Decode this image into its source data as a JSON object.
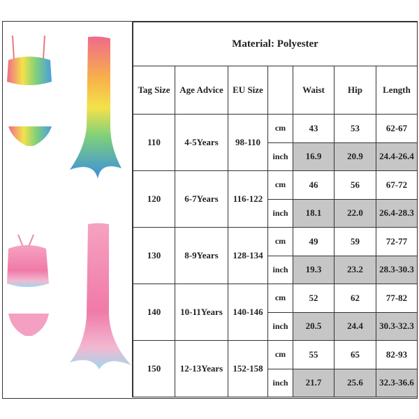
{
  "title": "Material: Polyester",
  "headers": {
    "tag": "Tag Size",
    "age": "Age Advice",
    "eu": "EU Size",
    "unit": "",
    "waist": "Waist",
    "hip": "Hip",
    "length": "Length"
  },
  "units": {
    "cm": "cm",
    "inch": "inch"
  },
  "rows": [
    {
      "tag": "110",
      "age": "4-5Years",
      "eu": "98-110",
      "cm": [
        "43",
        "53",
        "62-67"
      ],
      "inch": [
        "16.9",
        "20.9",
        "24.4-26.4"
      ]
    },
    {
      "tag": "120",
      "age": "6-7Years",
      "eu": "116-122",
      "cm": [
        "46",
        "56",
        "67-72"
      ],
      "inch": [
        "18.1",
        "22.0",
        "26.4-28.3"
      ]
    },
    {
      "tag": "130",
      "age": "8-9Years",
      "eu": "128-134",
      "cm": [
        "49",
        "59",
        "72-77"
      ],
      "inch": [
        "19.3",
        "23.2",
        "28.3-30.3"
      ]
    },
    {
      "tag": "140",
      "age": "10-11Years",
      "eu": "140-146",
      "cm": [
        "52",
        "62",
        "77-82"
      ],
      "inch": [
        "20.5",
        "24.4",
        "30.3-32.3"
      ]
    },
    {
      "tag": "150",
      "age": "12-13Years",
      "eu": "152-158",
      "cm": [
        "55",
        "65",
        "82-93"
      ],
      "inch": [
        "21.7",
        "25.6",
        "32.3-36.6"
      ]
    }
  ],
  "colors": {
    "inch_cell_bg": "#c6c6c6",
    "border": "#333333"
  }
}
